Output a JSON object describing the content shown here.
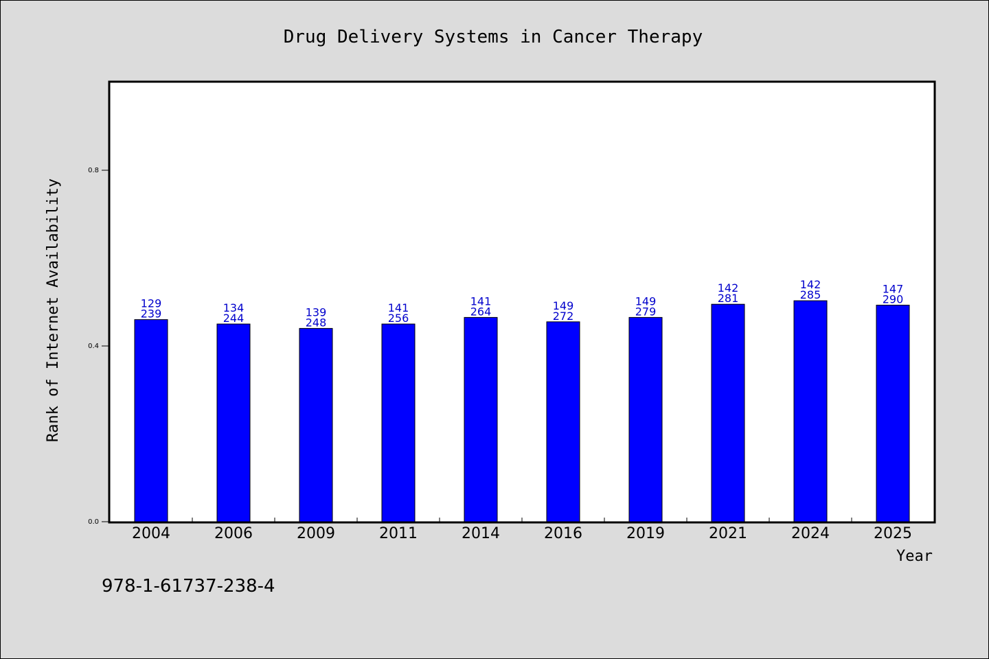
{
  "chart_data": {
    "type": "bar",
    "title": "Drug Delivery Systems in Cancer Therapy",
    "xlabel": "Year",
    "ylabel": "Rank of Internet Availability",
    "categories": [
      "2004",
      "2006",
      "2009",
      "2011",
      "2014",
      "2016",
      "2019",
      "2021",
      "2024",
      "2025"
    ],
    "values": [
      0.46,
      0.45,
      0.44,
      0.45,
      0.465,
      0.455,
      0.465,
      0.495,
      0.503,
      0.493
    ],
    "label_top": [
      "129",
      "134",
      "139",
      "141",
      "141",
      "149",
      "149",
      "142",
      "142",
      "147"
    ],
    "label_bottom": [
      "239",
      "244",
      "248",
      "256",
      "264",
      "272",
      "279",
      "281",
      "285",
      "290"
    ],
    "ylim": [
      0,
      1.0
    ],
    "yticks": [
      0.0,
      0.4,
      0.8
    ],
    "ytick_labels": [
      "0.0",
      "0.4",
      "0.8"
    ],
    "bar_color": "#0000ff",
    "label_color": "#0000cc",
    "grid": false
  },
  "footer": {
    "isbn": "978-1-61737-238-4"
  }
}
